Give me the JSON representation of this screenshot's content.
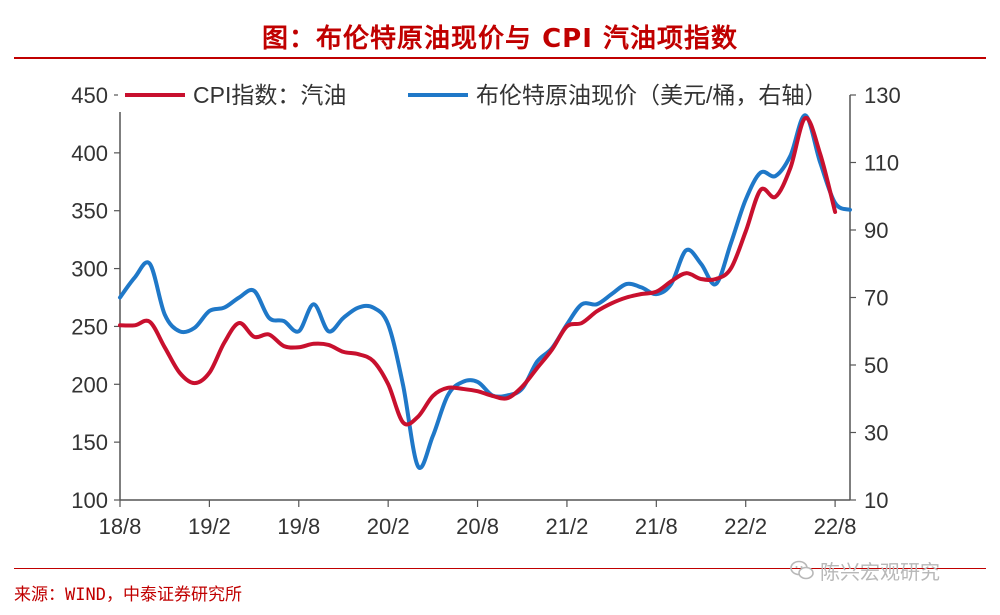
{
  "header": {
    "title": "图：布伦特原油现价与 CPI 汽油项指数"
  },
  "footer": {
    "source": "来源：WIND，中泰证券研究所",
    "watermark": "陈兴宏观研究"
  },
  "colors": {
    "cpi_line": "#c8102e",
    "brent_line": "#1f78c8",
    "accent": "#c00000",
    "axis": "#555555"
  },
  "icons": {
    "watermark_icon": "wechat-icon"
  },
  "chart_data": {
    "type": "line",
    "title": "图：布伦特原油现价与 CPI 汽油项指数",
    "x_ticks": [
      "18/8",
      "19/2",
      "19/8",
      "20/2",
      "20/8",
      "21/2",
      "21/8",
      "22/2",
      "22/8"
    ],
    "x_range": [
      "2018-08",
      "2022-09"
    ],
    "y_left": {
      "lim": [
        100,
        450
      ],
      "ticks": [
        100,
        150,
        200,
        250,
        300,
        350,
        400,
        450
      ]
    },
    "y_right": {
      "lim": [
        10,
        130
      ],
      "ticks": [
        10,
        30,
        50,
        70,
        90,
        110,
        130
      ]
    },
    "legend_position": "top",
    "grid": false,
    "series": [
      {
        "name": "CPI指数：汽油",
        "axis": "left",
        "x": [
          "2018-08",
          "2018-09",
          "2018-10",
          "2018-11",
          "2018-12",
          "2019-01",
          "2019-02",
          "2019-03",
          "2019-04",
          "2019-05",
          "2019-06",
          "2019-07",
          "2019-08",
          "2019-09",
          "2019-10",
          "2019-11",
          "2019-12",
          "2020-01",
          "2020-02",
          "2020-03",
          "2020-04",
          "2020-05",
          "2020-06",
          "2020-07",
          "2020-08",
          "2020-09",
          "2020-10",
          "2020-11",
          "2020-12",
          "2021-01",
          "2021-02",
          "2021-03",
          "2021-04",
          "2021-05",
          "2021-06",
          "2021-07",
          "2021-08",
          "2021-09",
          "2021-10",
          "2021-11",
          "2021-12",
          "2022-01",
          "2022-02",
          "2022-03",
          "2022-04",
          "2022-05",
          "2022-06",
          "2022-07",
          "2022-08"
        ],
        "values": [
          251,
          251,
          254,
          232,
          210,
          201,
          210,
          236,
          253,
          241,
          243,
          233,
          232,
          235,
          234,
          228,
          226,
          220,
          200,
          167,
          172,
          190,
          197,
          196,
          194,
          190,
          188,
          198,
          214,
          230,
          250,
          253,
          263,
          270,
          275,
          278,
          280,
          289,
          296,
          291,
          291,
          300,
          332,
          368,
          362,
          387,
          430,
          399,
          349
        ]
      },
      {
        "name": "布伦特原油现价（美元/桶，右轴）",
        "axis": "right",
        "x": [
          "2018-08",
          "2018-09",
          "2018-10",
          "2018-11",
          "2018-12",
          "2019-01",
          "2019-02",
          "2019-03",
          "2019-04",
          "2019-05",
          "2019-06",
          "2019-07",
          "2019-08",
          "2019-09",
          "2019-10",
          "2019-11",
          "2019-12",
          "2020-01",
          "2020-02",
          "2020-03",
          "2020-04",
          "2020-05",
          "2020-06",
          "2020-07",
          "2020-08",
          "2020-09",
          "2020-10",
          "2020-11",
          "2020-12",
          "2021-01",
          "2021-02",
          "2021-03",
          "2021-04",
          "2021-05",
          "2021-06",
          "2021-07",
          "2021-08",
          "2021-09",
          "2021-10",
          "2021-11",
          "2021-12",
          "2022-01",
          "2022-02",
          "2022-03",
          "2022-04",
          "2022-05",
          "2022-06",
          "2022-07",
          "2022-08",
          "2022-09"
        ],
        "values": [
          70,
          76,
          80,
          65,
          60,
          61,
          66,
          67,
          70,
          72,
          64,
          63,
          60,
          68,
          60,
          64,
          67,
          67,
          62,
          44,
          20,
          29,
          41,
          45,
          45,
          41,
          41,
          43,
          51,
          55,
          62,
          68,
          68,
          71,
          74,
          73,
          71,
          74,
          84,
          80,
          74,
          86,
          99,
          107,
          106,
          112,
          124,
          110,
          98,
          96
        ]
      }
    ]
  }
}
